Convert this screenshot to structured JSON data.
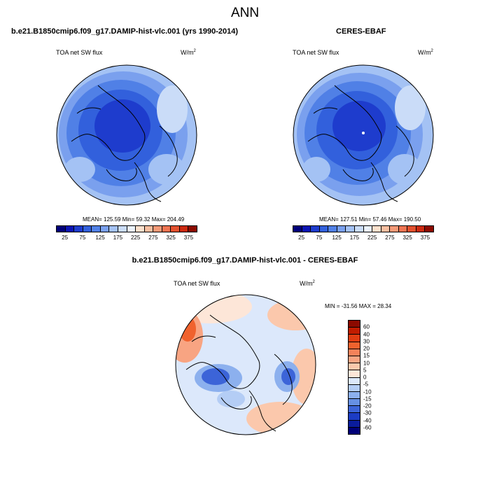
{
  "title": "ANN",
  "panels": {
    "model": {
      "title": "b.e21.B1850cmip6.f09_g17.DAMIP-hist-vlc.001 (yrs 1990-2014)",
      "variable": "TOA net SW flux",
      "units_base": "W/m",
      "units_exp": "2",
      "stats": "MEAN= 125.59  Min=  59.32  Max= 204.49"
    },
    "obs": {
      "title": "CERES-EBAF",
      "variable": "TOA net SW flux",
      "units_base": "W/m",
      "units_exp": "2",
      "stats": "MEAN= 127.51  Min=  57.46  Max= 190.50"
    },
    "diff": {
      "title": "b.e21.B1850cmip6.f09_g17.DAMIP-hist-vlc.001 - CERES-EBAF",
      "variable": "TOA net SW flux",
      "units_base": "W/m",
      "units_exp": "2",
      "stats": "MIN = -31.56 MAX =  28.34"
    }
  },
  "colorbars": {
    "abs": {
      "labels": [
        "25",
        "75",
        "125",
        "175",
        "225",
        "275",
        "325",
        "375"
      ],
      "colors": [
        "#00007a",
        "#0a14b4",
        "#1e3ccd",
        "#3260dc",
        "#5080e6",
        "#7aa0ee",
        "#a4c2f4",
        "#cadcf8",
        "#eaf2fc",
        "#fce0cc",
        "#f8bea0",
        "#f49a78",
        "#ee7452",
        "#e2502e",
        "#cc2a10",
        "#8c0a00"
      ]
    },
    "diff": {
      "labels": [
        "60",
        "40",
        "30",
        "20",
        "15",
        "10",
        "5",
        "0",
        "-5",
        "-10",
        "-15",
        "-20",
        "-30",
        "-40",
        "-60"
      ],
      "colors": [
        "#8c0a00",
        "#c01c00",
        "#e03c12",
        "#f0622e",
        "#f5825a",
        "#f8a482",
        "#fbc8ac",
        "#fde6d8",
        "#dce8fb",
        "#b4cdf5",
        "#8cb0ee",
        "#6690e4",
        "#3c64d8",
        "#1c3cc4",
        "#0a1c9c",
        "#000078"
      ]
    }
  }
}
